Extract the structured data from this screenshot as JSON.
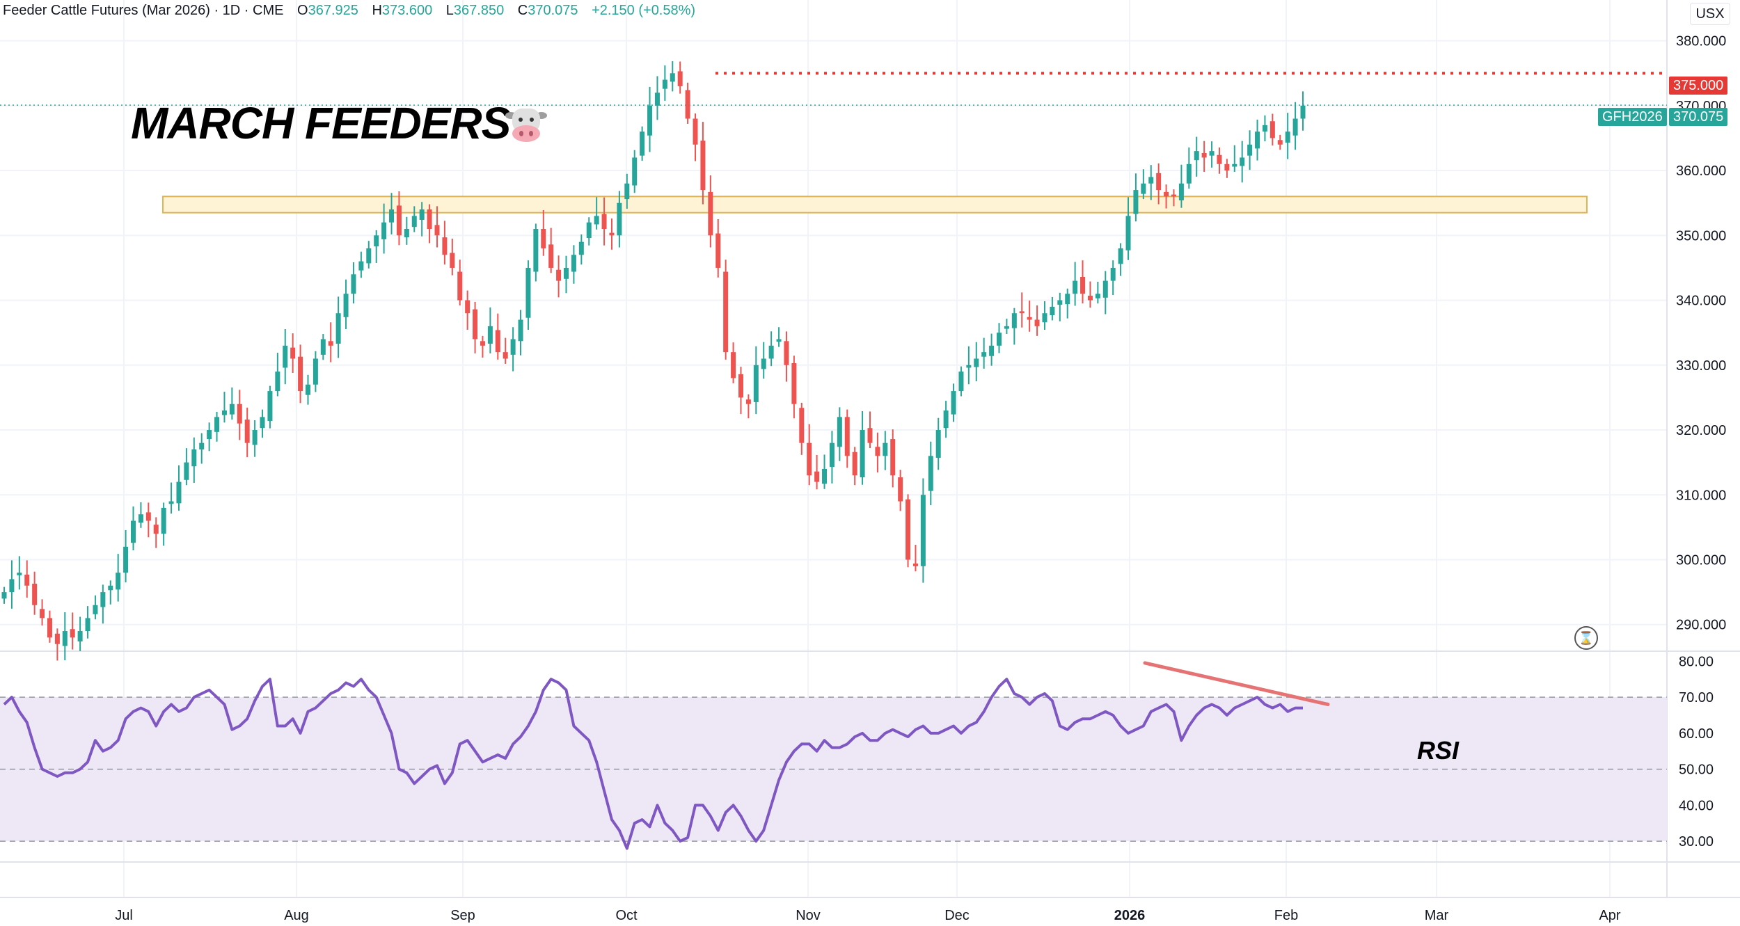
{
  "header": {
    "symbol_text": "Feeder Cattle Futures (Mar 2026) · 1D · CME",
    "open_label": "O",
    "open": "367.925",
    "high_label": "H",
    "high": "373.600",
    "low_label": "L",
    "low": "367.850",
    "close_label": "C",
    "close": "370.075",
    "change": "+2.150 (+0.58%)",
    "currency": "USX"
  },
  "annotations": {
    "title": "MARCH FEEDERS",
    "emoji": "cow-face-icon",
    "rsi_label": "RSI",
    "resistance_tag": "375.000",
    "symbol_tag": "GFH2026",
    "last_price_tag": "370.075"
  },
  "colors": {
    "up": "#26a69a",
    "down": "#ef5350",
    "rsi_line": "#7e57c2",
    "rsi_band": "#ede7f6",
    "zone_fill": "#fff3d6",
    "zone_border": "#e0b454",
    "resistance": "#e53935",
    "trendline": "#e57373"
  },
  "chart_data": [
    {
      "type": "candlestick",
      "title": "Feeder Cattle Futures (Mar 2026) · 1D · CME",
      "y_ticks": [
        "380.000",
        "370.000",
        "360.000",
        "350.000",
        "340.000",
        "330.000",
        "320.000",
        "310.000",
        "300.000",
        "290.000"
      ],
      "ylim": [
        286,
        382
      ],
      "x_ticks": [
        "Jul",
        "Aug",
        "Sep",
        "Oct",
        "Nov",
        "Dec",
        "2026",
        "Feb",
        "Mar",
        "Apr"
      ],
      "resistance_level": 375.0,
      "support_zone": [
        353.5,
        356.0
      ],
      "last_price": 370.075,
      "closes": [
        295,
        297,
        298,
        296,
        293,
        291,
        288,
        287,
        289,
        288,
        289,
        291,
        293,
        295,
        296,
        298,
        302,
        306,
        307,
        306,
        304,
        308,
        309,
        312,
        315,
        317,
        318,
        320,
        322,
        323,
        324,
        321,
        318,
        320,
        322,
        326,
        329,
        333,
        331,
        326,
        327,
        331,
        334,
        333,
        338,
        341,
        344,
        346,
        348,
        350,
        352,
        354,
        350,
        351,
        353,
        354,
        351,
        350,
        347,
        345,
        340,
        338,
        334,
        333,
        336,
        332,
        331,
        334,
        337,
        345,
        351,
        348,
        345,
        343,
        345,
        347,
        349,
        352,
        353,
        351,
        350,
        355,
        358,
        362,
        366,
        370,
        372,
        374,
        375,
        373,
        368,
        364,
        357,
        350,
        345,
        332,
        328,
        325,
        324,
        330,
        331,
        333,
        334,
        330,
        324,
        318,
        313,
        312,
        314,
        318,
        322,
        316,
        313,
        320,
        318,
        316,
        318,
        313,
        309,
        300,
        299,
        310,
        316,
        320,
        323,
        326,
        329,
        330,
        331,
        332,
        333,
        335,
        336,
        338,
        338,
        337,
        336,
        338,
        339,
        340,
        341,
        343,
        341,
        340,
        341,
        343,
        345,
        348,
        353,
        357,
        358,
        359,
        357,
        356,
        356,
        358,
        361,
        363,
        362,
        363,
        361,
        360,
        361,
        362,
        364,
        366,
        367,
        365,
        364,
        366,
        368,
        370
      ],
      "rsi": {
        "ylim": [
          25,
          82
        ],
        "ticks": [
          "80.00",
          "70.00",
          "60.00",
          "50.00",
          "40.00",
          "30.00"
        ],
        "bands": [
          70,
          50,
          30
        ],
        "values": [
          68,
          70,
          66,
          63,
          56,
          50,
          49,
          48,
          49,
          49,
          50,
          52,
          58,
          55,
          56,
          58,
          64,
          66,
          67,
          66,
          62,
          66,
          68,
          66,
          67,
          70,
          71,
          72,
          70,
          68,
          61,
          62,
          64,
          69,
          73,
          75,
          62,
          62,
          64,
          60,
          66,
          67,
          69,
          71,
          72,
          74,
          73,
          75,
          72,
          70,
          65,
          60,
          50,
          49,
          46,
          48,
          50,
          51,
          46,
          49,
          57,
          58,
          55,
          52,
          53,
          54,
          53,
          57,
          59,
          62,
          66,
          72,
          75,
          74,
          72,
          62,
          60,
          58,
          52,
          44,
          36,
          33,
          28,
          35,
          36,
          34,
          40,
          35,
          33,
          30,
          31,
          40,
          40,
          37,
          33,
          38,
          40,
          37,
          33,
          30,
          33,
          40,
          47,
          52,
          55,
          57,
          57,
          55,
          58,
          56,
          56,
          57,
          59,
          60,
          58,
          58,
          60,
          61,
          60,
          59,
          61,
          62,
          60,
          60,
          61,
          62,
          60,
          62,
          63,
          66,
          70,
          73,
          75,
          71,
          70,
          68,
          70,
          71,
          69,
          62,
          61,
          63,
          64,
          64,
          65,
          66,
          65,
          62,
          60,
          61,
          62,
          66,
          67,
          68,
          66,
          58,
          62,
          65,
          67,
          68,
          67,
          65,
          67,
          68,
          69,
          70,
          68,
          67,
          68,
          66,
          67,
          67
        ]
      },
      "rsi_trendline": {
        "start": 79.5,
        "end": 68
      }
    }
  ]
}
